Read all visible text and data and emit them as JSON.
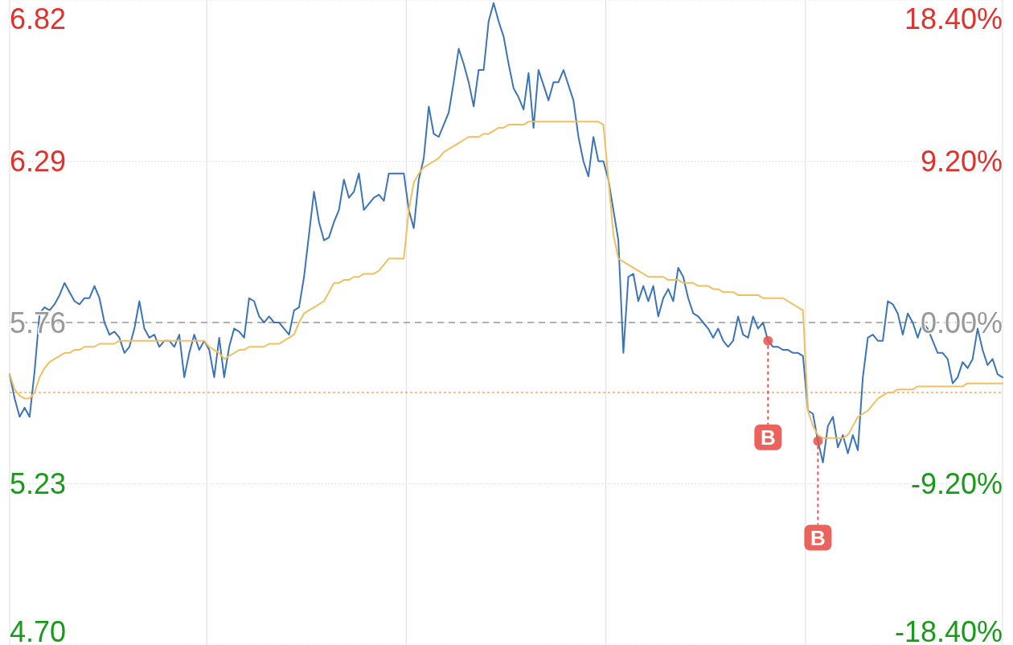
{
  "chart_data": {
    "type": "line",
    "categories": [
      null,
      null,
      null,
      null,
      null,
      null,
      null,
      null,
      null,
      null,
      null,
      null,
      null,
      null,
      null,
      null,
      null,
      null,
      null,
      null,
      null,
      null,
      null,
      null,
      null,
      null,
      null,
      null,
      null,
      null,
      null,
      null,
      null,
      null,
      null,
      null,
      null,
      null,
      null,
      null,
      null,
      null,
      null,
      null,
      null,
      null,
      null,
      null,
      null,
      null,
      null,
      null,
      null,
      null,
      null,
      null,
      null,
      null,
      null,
      null,
      null,
      null,
      null,
      null,
      null,
      null,
      null,
      null,
      null,
      null,
      null,
      null,
      null,
      null,
      null,
      null,
      null,
      null,
      null,
      null,
      null,
      null,
      null,
      null,
      null,
      null,
      null,
      null,
      null,
      null,
      null,
      null,
      null,
      null,
      null,
      null,
      null,
      null,
      null,
      null,
      null,
      null,
      null,
      null,
      null,
      null,
      null,
      null,
      null,
      null,
      null,
      null,
      null,
      null,
      null,
      null,
      null,
      null,
      null,
      null,
      null,
      null,
      null,
      null,
      null,
      null,
      null,
      null,
      null,
      null,
      null,
      null,
      null,
      null,
      null,
      null,
      null,
      null,
      null,
      null,
      null,
      null,
      null,
      null,
      null,
      null,
      null,
      null,
      null,
      null,
      null,
      null,
      null,
      null,
      null,
      null,
      null,
      null,
      null,
      null,
      null,
      null,
      null,
      null,
      null,
      null,
      null,
      null,
      null,
      null,
      null,
      null,
      null,
      null,
      null,
      null,
      null,
      null,
      null,
      null,
      null,
      null,
      null,
      null,
      null,
      null,
      null,
      null,
      null,
      null,
      null,
      null,
      null,
      null,
      null,
      null,
      null,
      null,
      null,
      null
    ],
    "series": [
      {
        "color": "#3b74b8",
        "values": [
          5.59,
          5.51,
          5.45,
          5.48,
          5.45,
          5.6,
          5.79,
          5.81,
          5.8,
          5.82,
          5.85,
          5.89,
          5.86,
          5.83,
          5.82,
          5.84,
          5.84,
          5.88,
          5.84,
          5.76,
          5.72,
          5.73,
          5.71,
          5.66,
          5.68,
          5.74,
          5.83,
          5.74,
          5.71,
          5.72,
          5.68,
          5.7,
          5.7,
          5.68,
          5.72,
          5.58,
          5.66,
          5.72,
          5.67,
          5.7,
          5.67,
          5.58,
          5.71,
          5.58,
          5.68,
          5.74,
          5.73,
          5.71,
          5.84,
          5.83,
          5.78,
          5.76,
          5.78,
          5.76,
          5.76,
          5.74,
          5.72,
          5.8,
          5.81,
          5.91,
          6.05,
          6.19,
          6.09,
          6.03,
          6.04,
          6.09,
          6.13,
          6.23,
          6.17,
          6.19,
          6.25,
          6.13,
          6.15,
          6.17,
          6.18,
          6.16,
          6.25,
          6.25,
          6.25,
          6.25,
          6.13,
          6.07,
          6.23,
          6.3,
          6.47,
          6.38,
          6.37,
          6.41,
          6.45,
          6.55,
          6.66,
          6.61,
          6.55,
          6.47,
          6.59,
          6.59,
          6.75,
          6.81,
          6.75,
          6.7,
          6.61,
          6.53,
          6.5,
          6.46,
          6.58,
          6.4,
          6.59,
          6.54,
          6.49,
          6.55,
          6.55,
          6.59,
          6.54,
          6.49,
          6.37,
          6.29,
          6.24,
          6.37,
          6.29,
          6.29,
          6.23,
          6.13,
          6.03,
          5.66,
          5.91,
          5.92,
          5.83,
          5.88,
          5.83,
          5.88,
          5.78,
          5.84,
          5.87,
          5.83,
          5.94,
          5.91,
          5.84,
          5.79,
          5.78,
          5.76,
          5.74,
          5.71,
          5.74,
          5.7,
          5.68,
          5.7,
          5.78,
          5.72,
          5.71,
          5.78,
          5.74,
          5.76,
          5.7,
          5.68,
          5.68,
          5.67,
          5.67,
          5.66,
          5.66,
          5.65,
          5.47,
          5.46,
          5.37,
          5.3,
          5.42,
          5.45,
          5.35,
          5.39,
          5.33,
          5.39,
          5.34,
          5.58,
          5.71,
          5.72,
          5.7,
          5.7,
          5.83,
          5.82,
          5.79,
          5.72,
          5.79,
          5.76,
          5.71,
          5.76,
          5.74,
          5.7,
          5.66,
          5.66,
          5.64,
          5.56,
          5.58,
          5.63,
          5.61,
          5.64,
          5.74,
          5.67,
          5.62,
          5.64,
          5.59,
          5.58
        ]
      },
      {
        "color": "#f0c060",
        "values": [
          5.59,
          5.54,
          5.52,
          5.51,
          5.51,
          5.53,
          5.58,
          5.61,
          5.63,
          5.64,
          5.65,
          5.66,
          5.66,
          5.67,
          5.67,
          5.68,
          5.68,
          5.68,
          5.69,
          5.69,
          5.69,
          5.69,
          5.7,
          5.7,
          5.7,
          5.7,
          5.7,
          5.7,
          5.7,
          5.7,
          5.7,
          5.7,
          5.7,
          5.7,
          5.7,
          5.7,
          5.7,
          5.7,
          5.7,
          5.7,
          5.68,
          5.67,
          5.66,
          5.64,
          5.65,
          5.66,
          5.67,
          5.67,
          5.68,
          5.68,
          5.68,
          5.68,
          5.69,
          5.69,
          5.69,
          5.7,
          5.71,
          5.72,
          5.76,
          5.79,
          5.8,
          5.81,
          5.82,
          5.83,
          5.86,
          5.89,
          5.89,
          5.9,
          5.9,
          5.91,
          5.91,
          5.92,
          5.92,
          5.92,
          5.93,
          5.95,
          5.97,
          5.97,
          5.97,
          5.97,
          6.13,
          6.22,
          6.25,
          6.27,
          6.28,
          6.29,
          6.3,
          6.32,
          6.33,
          6.34,
          6.35,
          6.36,
          6.37,
          6.37,
          6.37,
          6.38,
          6.38,
          6.39,
          6.4,
          6.4,
          6.41,
          6.41,
          6.41,
          6.41,
          6.42,
          6.42,
          6.42,
          6.42,
          6.42,
          6.42,
          6.42,
          6.42,
          6.42,
          6.42,
          6.42,
          6.42,
          6.42,
          6.42,
          6.42,
          6.41,
          6.23,
          6.05,
          5.97,
          5.96,
          5.95,
          5.94,
          5.93,
          5.92,
          5.91,
          5.91,
          5.91,
          5.91,
          5.9,
          5.9,
          5.9,
          5.89,
          5.89,
          5.89,
          5.88,
          5.88,
          5.88,
          5.87,
          5.87,
          5.86,
          5.86,
          5.86,
          5.85,
          5.85,
          5.85,
          5.85,
          5.85,
          5.84,
          5.84,
          5.84,
          5.84,
          5.84,
          5.83,
          5.82,
          5.81,
          5.8,
          5.47,
          5.42,
          5.39,
          5.38,
          5.38,
          5.38,
          5.38,
          5.38,
          5.39,
          5.42,
          5.45,
          5.46,
          5.47,
          5.49,
          5.51,
          5.52,
          5.53,
          5.53,
          5.54,
          5.54,
          5.54,
          5.54,
          5.55,
          5.55,
          5.55,
          5.55,
          5.55,
          5.55,
          5.55,
          5.55,
          5.55,
          5.55,
          5.56,
          5.56,
          5.56,
          5.56,
          5.56,
          5.56,
          5.56,
          5.56
        ]
      },
      {
        "type": "scatter",
        "color": "#e8524a",
        "values": [
          null,
          null,
          null,
          null,
          null,
          null,
          null,
          null,
          null,
          null,
          null,
          null,
          null,
          null,
          null,
          null,
          null,
          null,
          null,
          null,
          null,
          null,
          null,
          null,
          null,
          null,
          null,
          null,
          null,
          null,
          null,
          null,
          null,
          null,
          null,
          null,
          null,
          null,
          null,
          null,
          null,
          null,
          null,
          null,
          null,
          null,
          null,
          null,
          null,
          null,
          null,
          null,
          null,
          null,
          null,
          null,
          null,
          null,
          null,
          null,
          null,
          null,
          null,
          null,
          null,
          null,
          null,
          null,
          null,
          null,
          null,
          null,
          null,
          null,
          null,
          null,
          null,
          null,
          null,
          null,
          null,
          null,
          null,
          null,
          null,
          null,
          null,
          null,
          null,
          null,
          null,
          null,
          null,
          null,
          null,
          null,
          null,
          null,
          null,
          null,
          null,
          null,
          null,
          null,
          null,
          null,
          null,
          null,
          null,
          null,
          null,
          null,
          null,
          null,
          null,
          null,
          null,
          null,
          null,
          null,
          null,
          null,
          null,
          null,
          null,
          null,
          null,
          null,
          null,
          null,
          null,
          null,
          null,
          null,
          null,
          null,
          null,
          null,
          null,
          null,
          null,
          null,
          null,
          null,
          null,
          null,
          null,
          null,
          null,
          null,
          null,
          null,
          5.7,
          null,
          null,
          null,
          null,
          null,
          null,
          null,
          null,
          null,
          5.37,
          null,
          null,
          null,
          null,
          null,
          null,
          null,
          null,
          null,
          null,
          null,
          null,
          null,
          null,
          null,
          null,
          null,
          null,
          null,
          null,
          null,
          null,
          null,
          null,
          null,
          null,
          null,
          null,
          null,
          null,
          null,
          null,
          null,
          null,
          null,
          null,
          null
        ]
      }
    ],
    "ylim": [
      4.7,
      6.82
    ],
    "yticks": [
      {
        "value": 4.7,
        "label": "4.70"
      },
      5.23,
      5.76,
      6.29,
      6.82
    ],
    "y2lim": [
      -18.4,
      18.4
    ],
    "y2ticks": [
      {
        "value": -18.4,
        "label": "-18.40%"
      },
      {
        "value": -9.2,
        "label": "-9.20%"
      },
      {
        "value": 0,
        "label": "0.00%"
      },
      {
        "value": 9.2,
        "label": "9.20%"
      },
      {
        "value": 18.4,
        "label": "18.40%"
      }
    ],
    "ref_lines": [
      {
        "axis": "y",
        "value": 5.76,
        "color": "#999999",
        "line_style": "dashed"
      },
      {
        "axis": "y",
        "value": 5.53,
        "color": "#d2873a",
        "line_style": "dotted"
      }
    ],
    "annotations": [
      "B",
      "B"
    ],
    "grid": true,
    "line_style": "solid"
  }
}
